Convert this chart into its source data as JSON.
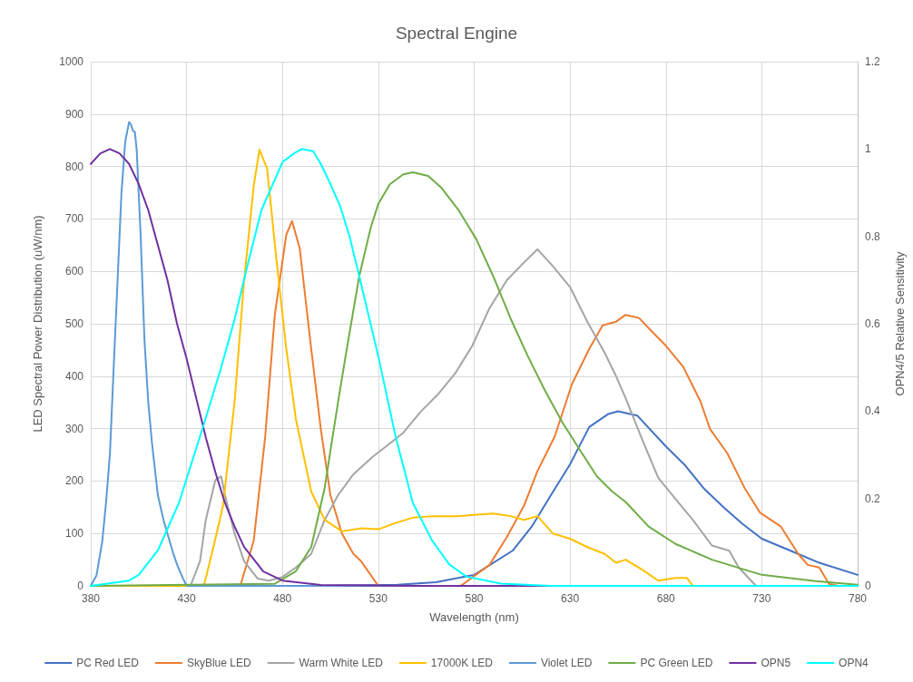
{
  "chart_data": {
    "type": "line",
    "title": "Spectral Engine",
    "xlabel": "Wavelength (nm)",
    "ylabel": "LED Spectral Power Distribution (uW/nm)",
    "y2label": "OPN4/5 Relative Sensitivity",
    "xlim": [
      380,
      780
    ],
    "xticks": [
      380,
      430,
      480,
      530,
      580,
      630,
      680,
      730,
      780
    ],
    "ylim": [
      0,
      1000
    ],
    "yticks": [
      0,
      100,
      200,
      300,
      400,
      500,
      600,
      700,
      800,
      900,
      1000
    ],
    "y2lim": [
      0,
      1.2
    ],
    "y2ticks": [
      0,
      0.2,
      0.4,
      0.6,
      0.8,
      1,
      1.2
    ],
    "grid": true,
    "legend": "bottom",
    "marker": "none",
    "line_style": "solid",
    "series": [
      {
        "name": "PC Red LED",
        "color": "#4472c4",
        "x": [
          380,
          500,
          540,
          560,
          580,
          600,
          610,
          620,
          630,
          640,
          650,
          655,
          665,
          680,
          690,
          700,
          710,
          720,
          730,
          745,
          760,
          780
        ],
        "values": [
          0,
          0,
          2,
          7,
          21,
          67,
          113,
          173,
          232,
          303,
          328,
          333,
          325,
          266,
          230,
          185,
          150,
          118,
          90,
          67,
          44,
          21
        ]
      },
      {
        "name": "SkyBlue LED",
        "color": "#ed7d31",
        "x": [
          458,
          465,
          471,
          476,
          482,
          485,
          489,
          495,
          500,
          505,
          511,
          517,
          521,
          530,
          573,
          588,
          597,
          606,
          613,
          622,
          631,
          640,
          647,
          654,
          659,
          666,
          673,
          680,
          689,
          698,
          703,
          712,
          721,
          729,
          740,
          749,
          754,
          760,
          765,
          770
        ],
        "values": [
          0,
          86,
          285,
          517,
          670,
          696,
          644,
          452,
          299,
          173,
          100,
          61,
          47,
          0,
          0,
          40,
          93,
          153,
          219,
          285,
          385,
          452,
          497,
          504,
          517,
          511,
          484,
          458,
          418,
          352,
          299,
          253,
          187,
          140,
          113,
          61,
          40,
          35,
          4,
          0
        ]
      },
      {
        "name": "Warm White LED",
        "color": "#a5a5a5",
        "x": [
          380,
          432,
          437,
          440,
          445,
          448,
          450,
          455,
          460,
          467,
          473,
          480,
          487,
          495,
          502,
          509,
          517,
          527,
          534,
          543,
          552,
          561,
          570,
          579,
          588,
          597,
          606,
          613,
          621,
          630,
          639,
          648,
          654,
          659,
          667,
          676,
          685,
          694,
          704,
          713,
          718,
          727,
          740,
          780
        ],
        "values": [
          0,
          0,
          47,
          126,
          202,
          209,
          173,
          100,
          47,
          14,
          10,
          17,
          35,
          61,
          126,
          173,
          213,
          246,
          266,
          292,
          332,
          365,
          405,
          458,
          530,
          583,
          617,
          642,
          610,
          570,
          504,
          445,
          400,
          358,
          285,
          206,
          166,
          126,
          77,
          67,
          35,
          0,
          0,
          0
        ]
      },
      {
        "name": "17000K LED",
        "color": "#ffc000",
        "x": [
          380,
          439,
          444,
          449,
          455,
          460,
          465,
          468,
          472,
          477,
          482,
          487,
          495,
          502,
          511,
          521,
          530,
          539,
          548,
          559,
          572,
          581,
          590,
          599,
          606,
          613,
          621,
          630,
          639,
          648,
          654,
          659,
          668,
          676,
          685,
          691,
          694
        ],
        "values": [
          0,
          0,
          74,
          153,
          351,
          583,
          763,
          832,
          796,
          617,
          452,
          318,
          180,
          126,
          104,
          110,
          108,
          120,
          130,
          133,
          133,
          136,
          138,
          133,
          126,
          133,
          100,
          90,
          74,
          61,
          44,
          50,
          30,
          10,
          15,
          15,
          0
        ]
      },
      {
        "name": "Violet LED",
        "color": "#5b9bd5",
        "x": [
          380,
          383,
          386,
          388,
          390,
          392,
          394,
          396,
          398,
          400,
          401,
          402,
          403,
          404,
          405,
          406,
          408,
          410,
          412,
          415,
          418,
          420,
          423,
          425,
          428,
          430,
          780
        ],
        "values": [
          0,
          20,
          85,
          160,
          252,
          420,
          583,
          749,
          848,
          885,
          880,
          868,
          866,
          830,
          749,
          670,
          470,
          350,
          270,
          173,
          125,
          100,
          62,
          41,
          15,
          0,
          0
        ]
      },
      {
        "name": "PC Green LED",
        "color": "#70ad47",
        "x": [
          380,
          476,
          487,
          495,
          502,
          509,
          513,
          520,
          526,
          530,
          536,
          543,
          548,
          556,
          563,
          572,
          581,
          590,
          599,
          608,
          617,
          626,
          635,
          644,
          652,
          659,
          671,
          685,
          704,
          730,
          758,
          780
        ],
        "values": [
          0,
          4,
          28,
          74,
          187,
          351,
          440,
          590,
          683,
          729,
          766,
          785,
          789,
          782,
          759,
          716,
          662,
          590,
          510,
          438,
          372,
          312,
          260,
          209,
          180,
          160,
          113,
          80,
          50,
          21,
          9,
          2
        ]
      },
      {
        "name": "OPN5",
        "color": "#7030a0",
        "axis": "y2",
        "x": [
          380,
          385,
          390,
          395,
          400,
          405,
          410,
          415,
          420,
          425,
          430,
          435,
          440,
          445,
          450,
          455,
          460,
          470,
          480,
          500,
          550,
          780
        ],
        "values": [
          0.966,
          0.99,
          1,
          0.99,
          0.966,
          0.92,
          0.86,
          0.78,
          0.7,
          0.6,
          0.52,
          0.43,
          0.34,
          0.26,
          0.19,
          0.136,
          0.089,
          0.033,
          0.012,
          0.002,
          0,
          0
        ]
      },
      {
        "name": "OPN4",
        "color": "#00ffff",
        "axis": "y2",
        "x": [
          380,
          400,
          405,
          415,
          426,
          439,
          448,
          455,
          461,
          469,
          480,
          486,
          490,
          496,
          500,
          505,
          510,
          515,
          520,
          530,
          539,
          548,
          558,
          567,
          576,
          594,
          620,
          780
        ],
        "values": [
          0,
          0.012,
          0.025,
          0.081,
          0.19,
          0.37,
          0.5,
          0.61,
          0.72,
          0.86,
          0.97,
          0.99,
          1,
          0.995,
          0.966,
          0.92,
          0.87,
          0.8,
          0.71,
          0.525,
          0.342,
          0.19,
          0.104,
          0.049,
          0.021,
          0.005,
          0,
          0
        ]
      }
    ]
  }
}
